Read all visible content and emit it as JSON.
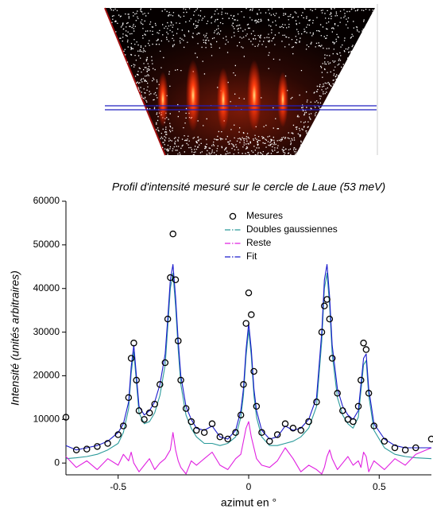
{
  "chart_data": {
    "type": "line",
    "title": "Profil d'intensité mesuré sur le cercle de Laue (53 meV)",
    "x_label": "azimut en °",
    "y_label": "Intensité (unités arbitraires)",
    "xlim": [
      -0.7,
      0.7
    ],
    "xticks": [
      -0.5,
      0,
      0.5
    ],
    "ylim": [
      -2700,
      60000
    ],
    "yticks": [
      0,
      10000,
      20000,
      30000,
      40000,
      50000,
      60000
    ],
    "grid": false,
    "x": [
      -0.7,
      -0.66,
      -0.62,
      -0.58,
      -0.54,
      -0.5,
      -0.48,
      -0.46,
      -0.45,
      -0.44,
      -0.43,
      -0.42,
      -0.4,
      -0.38,
      -0.36,
      -0.34,
      -0.32,
      -0.31,
      -0.3,
      -0.29,
      -0.28,
      -0.27,
      -0.26,
      -0.24,
      -0.22,
      -0.2,
      -0.17,
      -0.14,
      -0.11,
      -0.08,
      -0.05,
      -0.03,
      -0.02,
      -0.01,
      0,
      0.01,
      0.02,
      0.03,
      0.05,
      0.08,
      0.11,
      0.14,
      0.17,
      0.2,
      0.23,
      0.26,
      0.28,
      0.29,
      0.3,
      0.31,
      0.32,
      0.34,
      0.36,
      0.38,
      0.4,
      0.42,
      0.43,
      0.44,
      0.45,
      0.46,
      0.48,
      0.52,
      0.56,
      0.6,
      0.64,
      0.7
    ],
    "series": [
      {
        "name": "Mesures",
        "color": "#000000",
        "marker": "circle",
        "values": [
          10500,
          3000,
          3200,
          3800,
          4500,
          6500,
          8500,
          15000,
          24000,
          27500,
          19000,
          12000,
          10000,
          11500,
          13500,
          18000,
          23000,
          33000,
          42500,
          52500,
          42000,
          28000,
          19000,
          12500,
          9500,
          7500,
          7000,
          9000,
          6000,
          5500,
          7000,
          11000,
          18000,
          32000,
          39000,
          34000,
          21000,
          13000,
          7000,
          5000,
          6500,
          9000,
          8000,
          7500,
          9500,
          14000,
          30000,
          36000,
          37500,
          33000,
          24000,
          16000,
          12000,
          10000,
          9500,
          13000,
          19000,
          27500,
          26000,
          16000,
          8500,
          5000,
          3500,
          3000,
          3500,
          5500
        ]
      },
      {
        "name": "Doubles gaussiennes",
        "color": "#2a9a9a",
        "dash": "dash-dot",
        "values": [
          1000,
          1200,
          1500,
          2000,
          3000,
          4500,
          7000,
          12500,
          20500,
          25500,
          18500,
          11500,
          9000,
          9500,
          11500,
          15500,
          22500,
          31000,
          40000,
          43500,
          36000,
          26000,
          18000,
          11000,
          8000,
          6000,
          4500,
          4500,
          4000,
          4500,
          6000,
          10500,
          15500,
          24500,
          30500,
          24500,
          15500,
          10500,
          6000,
          4000,
          4000,
          4500,
          5000,
          6000,
          8000,
          13000,
          28000,
          40000,
          43500,
          36000,
          25000,
          15000,
          11000,
          9000,
          8000,
          10500,
          16500,
          22500,
          23500,
          15500,
          7500,
          3500,
          2000,
          1500,
          1200,
          1000
        ]
      },
      {
        "name": "Reste",
        "color": "#e020e0",
        "dash": "dash-dot",
        "values": [
          1500,
          -1000,
          500,
          -1500,
          1000,
          -500,
          2000,
          500,
          2500,
          0,
          -1000,
          -2000,
          -500,
          1000,
          -1500,
          0,
          1000,
          2000,
          3000,
          7000,
          3000,
          500,
          -1000,
          -2500,
          500,
          -500,
          1000,
          2500,
          -500,
          -1500,
          1000,
          2000,
          5000,
          8000,
          9500,
          6000,
          3500,
          1000,
          -500,
          -1000,
          500,
          3500,
          1000,
          -2000,
          -500,
          -1500,
          -2500,
          -1000,
          1500,
          3000,
          1000,
          -1500,
          0,
          1500,
          -500,
          500,
          -1000,
          2500,
          1500,
          -2000,
          500,
          -1500,
          1000,
          -500,
          2000,
          3500
        ]
      },
      {
        "name": "Fit",
        "color": "#1a1acc",
        "dash": "dash-dot",
        "values": [
          4000,
          3000,
          3500,
          4000,
          5000,
          7000,
          9000,
          14000,
          22000,
          27000,
          20000,
          13000,
          11000,
          12000,
          14000,
          18000,
          25000,
          33000,
          42000,
          45500,
          38000,
          28000,
          20000,
          13000,
          10000,
          8000,
          7500,
          8500,
          6000,
          5500,
          7500,
          12000,
          17000,
          26000,
          32000,
          26000,
          17000,
          12000,
          7500,
          5500,
          6000,
          8500,
          7500,
          8000,
          10000,
          15000,
          30000,
          42000,
          45500,
          38000,
          27000,
          17000,
          13000,
          11000,
          10000,
          12000,
          18000,
          24000,
          25000,
          17000,
          9000,
          5500,
          4000,
          3500,
          3500,
          3500
        ]
      }
    ]
  }
}
